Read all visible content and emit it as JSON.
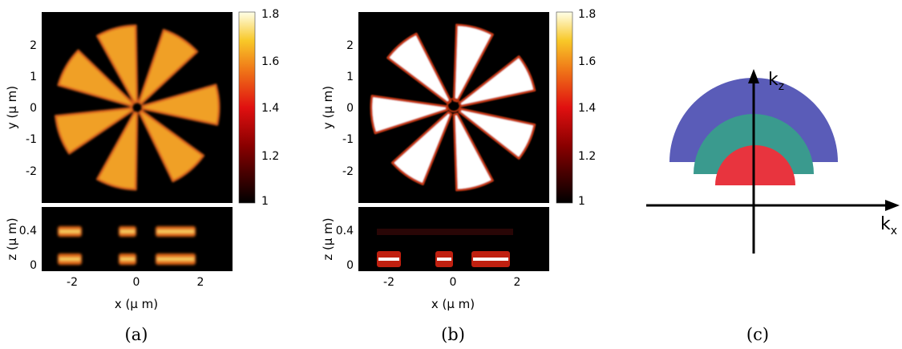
{
  "panels": {
    "a": {
      "caption": "(a)",
      "top": {
        "ylabel": "y (μ m)",
        "yticks": [
          "2",
          "1",
          "0",
          "-1",
          "-2"
        ],
        "colorbar_ticks": [
          "1.8",
          "1.6",
          "1.4",
          "1.2",
          "1"
        ],
        "colorbar_range": [
          1,
          1.8
        ],
        "pattern": "7 blurred orange-yellow wedges on black",
        "wedge_angles_deg": [
          -105,
          -57,
          -2,
          50,
          105,
          160,
          210
        ]
      },
      "bottom": {
        "ylabel": "z (μ m)",
        "yticks": [
          "0.4",
          "0"
        ],
        "xlabel": "x (μ m)",
        "xticks": [
          "-2",
          "0",
          "2"
        ]
      }
    },
    "b": {
      "caption": "(b)",
      "top": {
        "ylabel": "y (μ m)",
        "yticks": [
          "2",
          "1",
          "0",
          "-1",
          "-2"
        ],
        "colorbar_ticks": [
          "1.8",
          "1.6",
          "1.4",
          "1.2",
          "1"
        ],
        "colorbar_range": [
          1,
          1.8
        ],
        "pattern": "7 saturated white wedges on black",
        "wedge_angles_deg": [
          -75,
          -25,
          25,
          75,
          125,
          175,
          230
        ]
      },
      "bottom": {
        "ylabel": "z (μ m)",
        "yticks": [
          "0.4",
          "0"
        ],
        "xlabel": "x (μ m)",
        "xticks": [
          "-2",
          "0",
          "2"
        ]
      }
    },
    "c": {
      "caption": "(c)",
      "x_axis_label_main": "k",
      "x_axis_label_sub": "x",
      "z_axis_label_main": "k",
      "z_axis_label_sub": "z",
      "shells": [
        {
          "name": "outer",
          "color": "#5a5cb8"
        },
        {
          "name": "middle",
          "color": "#3a9a8e"
        },
        {
          "name": "inner",
          "color": "#e8343e"
        }
      ]
    }
  },
  "colors": {
    "background": "#000000",
    "wedge_a": "#f0a028",
    "wedge_b": "#ffffff"
  }
}
